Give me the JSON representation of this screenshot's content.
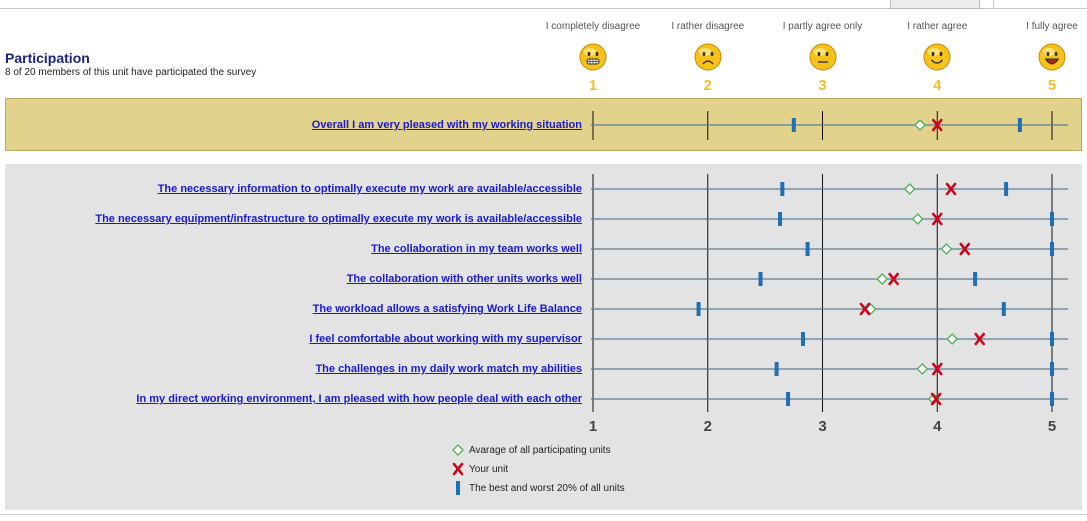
{
  "participation": {
    "title": "Participation",
    "subtitle": "8 of 20 members of this unit have participated the survey"
  },
  "scale": [
    {
      "value": 1,
      "label": "I completely disagree",
      "face": "grinning-teeth"
    },
    {
      "value": 2,
      "label": "I rather disagree",
      "face": "frown"
    },
    {
      "value": 3,
      "label": "I partly agree only",
      "face": "neutral"
    },
    {
      "value": 4,
      "label": "I rather agree",
      "face": "smile"
    },
    {
      "value": 5,
      "label": "I fully agree",
      "face": "big-grin"
    }
  ],
  "chart_data": {
    "type": "scatter",
    "xlim": [
      1,
      5
    ],
    "x_ticks": [
      "1",
      "2",
      "3",
      "4",
      "5"
    ],
    "overall": {
      "question": "Overall I am very pleased with my working situation",
      "avg": 3.85,
      "unit": 4.0,
      "worst20": 2.75,
      "best20": 4.72
    },
    "questions": [
      {
        "question": "The necessary information to optimally execute my work are available/accessible",
        "avg": 3.76,
        "unit": 4.12,
        "worst20": 2.65,
        "best20": 4.6
      },
      {
        "question": "The necessary equipment/infrastructure to optimally execute my work is available/accessible",
        "avg": 3.83,
        "unit": 4.0,
        "worst20": 2.63,
        "best20": 5.0
      },
      {
        "question": "The collaboration in my team works well",
        "avg": 4.08,
        "unit": 4.24,
        "worst20": 2.87,
        "best20": 5.0
      },
      {
        "question": "The collaboration with other units works well",
        "avg": 3.52,
        "unit": 3.62,
        "worst20": 2.46,
        "best20": 4.33
      },
      {
        "question": "The workload allows a satisfying Work Life Balance",
        "avg": 3.42,
        "unit": 3.37,
        "worst20": 1.92,
        "best20": 4.58
      },
      {
        "question": "I feel comfortable about working with my supervisor",
        "avg": 4.13,
        "unit": 4.37,
        "worst20": 2.83,
        "best20": 5.0
      },
      {
        "question": "The challenges in my daily work match my abilities",
        "avg": 3.87,
        "unit": 4.0,
        "worst20": 2.6,
        "best20": 5.0
      },
      {
        "question": "In my direct working environment, I am pleased with how people deal with each other",
        "avg": 3.97,
        "unit": 3.99,
        "worst20": 2.7,
        "best20": 5.0
      }
    ],
    "legend": [
      {
        "symbol": "diamond",
        "label": "Avarage of all participating units"
      },
      {
        "symbol": "cross",
        "label": "Your unit"
      },
      {
        "symbol": "bar",
        "label": "The best and worst 20% of all units"
      }
    ],
    "colors": {
      "avg": "#4caf50",
      "unit": "#d0021b",
      "range": "#1f6fb5",
      "line": "#5a7f99",
      "grid": "#111111"
    }
  }
}
